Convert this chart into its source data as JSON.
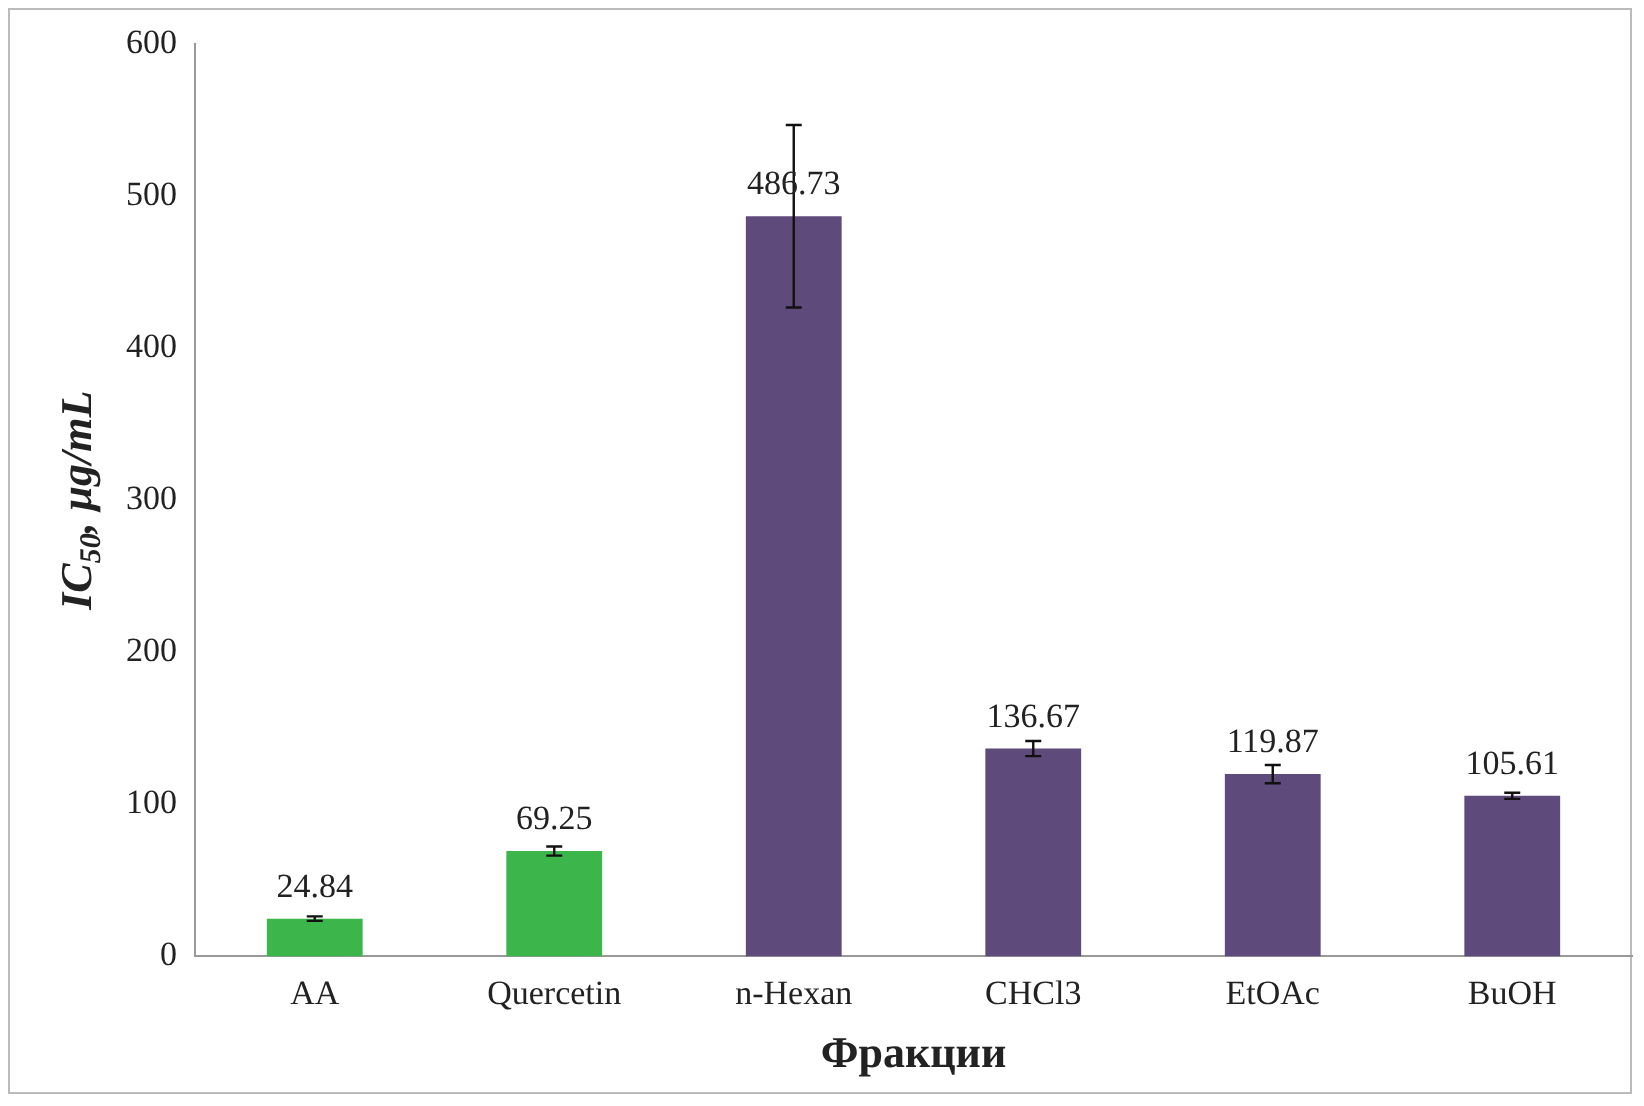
{
  "chart_data": {
    "type": "bar",
    "ylabel": "IC$_{50}$, µg/mL",
    "xlabel": "Фракции",
    "categories": [
      "AA",
      "Quercetin",
      "n-Hexan",
      "CHCl3",
      "EtOAc",
      "BuOH"
    ],
    "values": [
      24.84,
      69.25,
      486.73,
      136.67,
      119.87,
      105.61
    ],
    "errors": [
      1.5,
      3,
      60,
      5,
      6,
      2
    ],
    "colors": [
      "#3cb54b",
      "#3cb54b",
      "#5f4b7b",
      "#5f4b7b",
      "#5f4b7b",
      "#5f4b7b"
    ],
    "ylim": [
      0,
      600
    ],
    "yticks": [
      0,
      100,
      200,
      300,
      400,
      500,
      600
    ],
    "grid": false,
    "legend": false,
    "data_labels": true
  }
}
